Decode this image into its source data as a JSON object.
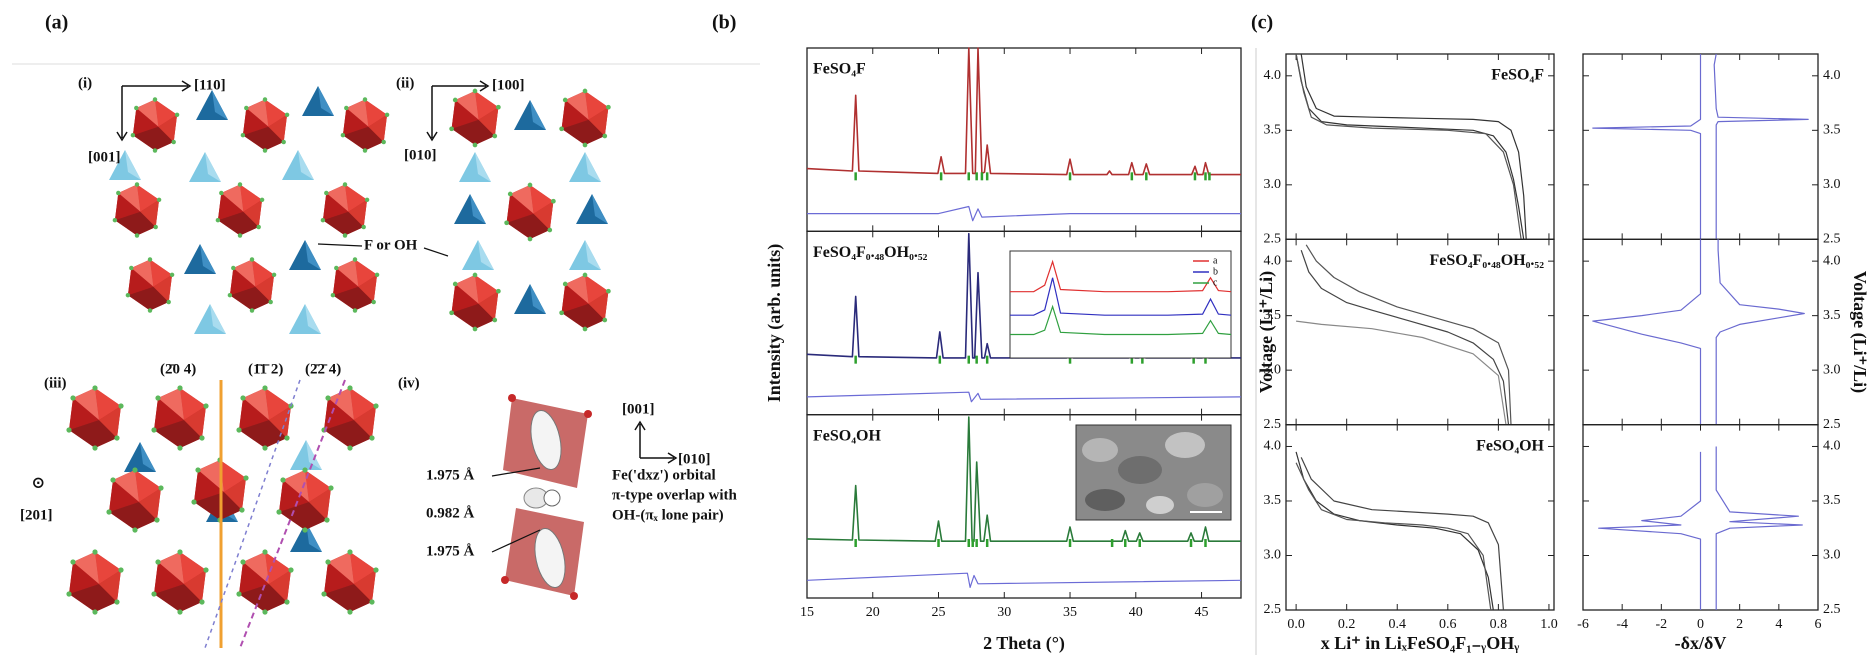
{
  "panel_labels": [
    "(a)",
    "(b)",
    "(c)"
  ],
  "panel_a": {
    "parts": [
      "(i)",
      "(ii)",
      "(iii)",
      "(iv)"
    ],
    "directions_i": [
      "[110]",
      "[001]"
    ],
    "directions_ii": [
      "[100]",
      "[010]"
    ],
    "site_label": "F or OH",
    "planes": [
      "(2̄0 4)",
      "(1̄1̄ 2)",
      "(2̄2̄ 4)"
    ],
    "view_symbol": "⊙",
    "view_direction": "[201]",
    "directions_iv": [
      "[001]",
      "[010]"
    ],
    "bond_lengths": [
      "1.975 Å",
      "0.982 Å",
      "1.975 Å"
    ],
    "orbital_note": [
      "Fe('dxz') orbital",
      "π-type overlap with",
      "OH-(πₓ lone pair)"
    ]
  },
  "chart_data": [
    {
      "type": "line",
      "title": "FeSO₄F",
      "xlim": [
        15,
        48
      ],
      "ylim": [
        -45,
        110
      ],
      "series": [
        {
          "color": "#b03030",
          "x": [
            15,
            18.45,
            18.7,
            18.95,
            24.95,
            25.2,
            25.45,
            27.05,
            27.3,
            27.6,
            27.8,
            28.0,
            28.3,
            28.5,
            28.7,
            28.95,
            34.75,
            35.0,
            35.25,
            37.8,
            38.0,
            38.2,
            39.45,
            39.7,
            39.95,
            40.55,
            40.8,
            41.05,
            44.25,
            44.5,
            44.7,
            45.1,
            45.3,
            45.55,
            48
          ],
          "values": [
            8,
            6,
            70,
            6,
            4,
            18,
            4,
            4,
            110,
            4,
            4,
            110,
            4,
            5,
            28,
            4,
            3,
            16,
            3,
            3,
            6,
            3,
            3,
            13,
            3,
            3,
            12,
            3,
            3,
            10,
            3,
            3,
            13,
            3,
            3
          ]
        },
        {
          "color": "#6b6bd6",
          "x": [
            15,
            25,
            27.3,
            27.6,
            28,
            28.3,
            35,
            48
          ],
          "values": [
            -30,
            -30,
            -24,
            -36,
            -26,
            -33,
            -30,
            -30
          ]
        }
      ],
      "bragg": {
        "color": "#2ea02e",
        "x": [
          18.7,
          25.2,
          27.3,
          27.9,
          28.3,
          28.7,
          35.0,
          39.7,
          40.8,
          44.5,
          45.3,
          45.6
        ]
      }
    },
    {
      "type": "line",
      "title": "FeSO₄F₀.₄₈OH₀.₅₂",
      "ylabel": "Intensity (arb. units)",
      "xlim": [
        15,
        48
      ],
      "ylim": [
        -45,
        110
      ],
      "series": [
        {
          "color": "#2a2a7a",
          "x": [
            15,
            18.45,
            18.7,
            18.95,
            24.85,
            25.1,
            25.35,
            27.05,
            27.3,
            27.6,
            27.75,
            28.0,
            28.3,
            28.5,
            28.7,
            28.95,
            34.75,
            35,
            35.25,
            39.45,
            39.7,
            39.95,
            40.25,
            40.5,
            40.75,
            44.15,
            44.4,
            44.65,
            45.05,
            45.3,
            45.55,
            48
          ],
          "values": [
            6,
            4,
            55,
            4,
            3,
            25,
            3,
            3,
            108,
            3,
            3,
            75,
            3,
            3,
            15,
            3,
            3,
            8,
            3,
            3,
            15,
            3,
            3,
            12,
            3,
            3,
            10,
            3,
            3,
            15,
            3,
            3
          ]
        },
        {
          "color": "#6b6bd6",
          "x": [
            15,
            27.3,
            27.5,
            28,
            28.2,
            48
          ],
          "values": [
            -30,
            -26,
            -34,
            -27,
            -32,
            -30
          ]
        }
      ],
      "bragg": {
        "color": "#2ea02e",
        "x": [
          18.7,
          25.1,
          27.3,
          27.9,
          28.7,
          35,
          39.7,
          40.5,
          44.4,
          45.3
        ]
      },
      "inset": {
        "type": "line",
        "xlim": [
          16,
          30
        ],
        "ylim": [
          0,
          100
        ],
        "series": [
          {
            "name": "a",
            "color": "#e03030",
            "x": [
              16,
              17.5,
              18.2,
              18.7,
              19.2,
              22,
              26,
              28.2,
              28.7,
              29.2,
              30
            ],
            "values": [
              62,
              62,
              68,
              90,
              64,
              62,
              62,
              63,
              75,
              63,
              62
            ]
          },
          {
            "name": "b",
            "color": "#3030c0",
            "x": [
              16,
              17.5,
              18.2,
              18.7,
              19.2,
              22,
              26,
              28.2,
              28.7,
              29.2,
              30
            ],
            "values": [
              40,
              40,
              45,
              75,
              42,
              40,
              40,
              41,
              55,
              41,
              40
            ]
          },
          {
            "name": "c",
            "color": "#30a040",
            "x": [
              16,
              17.5,
              18.2,
              18.7,
              19.2,
              22,
              26,
              28.2,
              28.7,
              29.2,
              30
            ],
            "values": [
              22,
              22,
              26,
              48,
              24,
              22,
              22,
              23,
              35,
              23,
              22
            ]
          }
        ]
      }
    },
    {
      "type": "line",
      "title": "FeSO₄OH",
      "xlabel": "2 Theta (°)",
      "xlim": [
        15,
        48
      ],
      "ylim": [
        -45,
        110
      ],
      "xticks": [
        15,
        20,
        25,
        30,
        35,
        40,
        45
      ],
      "series": [
        {
          "color": "#2a7a3a",
          "x": [
            15,
            18.45,
            18.7,
            18.95,
            24.75,
            25,
            25.25,
            27.05,
            27.3,
            27.55,
            27.7,
            27.9,
            28.2,
            28.45,
            28.7,
            28.95,
            34.75,
            35,
            35.25,
            38.95,
            39.2,
            39.45,
            40.05,
            40.3,
            40.55,
            43.95,
            44.2,
            44.45,
            45.05,
            45.3,
            45.55,
            48
          ],
          "values": [
            5,
            4,
            50,
            4,
            3,
            20,
            3,
            3,
            108,
            3,
            3,
            70,
            3,
            3,
            25,
            3,
            3,
            15,
            3,
            3,
            12,
            3,
            3,
            10,
            3,
            3,
            10,
            3,
            3,
            15,
            3,
            3
          ]
        },
        {
          "color": "#6b6bd6",
          "x": [
            15,
            27.2,
            27.4,
            27.7,
            28,
            48
          ],
          "values": [
            -30,
            -24,
            -36,
            -26,
            -33,
            -30
          ]
        }
      ],
      "bragg": {
        "color": "#2ea02e",
        "x": [
          18.7,
          25,
          27.3,
          27.6,
          27.9,
          28.7,
          35,
          38.2,
          39.2,
          40.3,
          44.2,
          45.3
        ]
      }
    },
    {
      "type": "line",
      "title": "FeSO₄F",
      "xlim": [
        -0.04,
        1.02
      ],
      "ylim": [
        2.5,
        4.2
      ],
      "yticks": [
        2.5,
        {
          "value": 3,
          "label": "3.0"
        },
        3.5,
        {
          "value": 4,
          "label": "4.0"
        }
      ],
      "series": [
        {
          "color": "#333333",
          "x": [
            0.0,
            0.02,
            0.05,
            0.1,
            0.2,
            0.4,
            0.6,
            0.7,
            0.78,
            0.83,
            0.86,
            0.88,
            0.9
          ],
          "values": [
            4.2,
            3.95,
            3.7,
            3.58,
            3.55,
            3.53,
            3.51,
            3.5,
            3.45,
            3.3,
            3.05,
            2.8,
            2.5
          ]
        },
        {
          "color": "#333333",
          "x": [
            0.91,
            0.9,
            0.88,
            0.85,
            0.8,
            0.7,
            0.5,
            0.3,
            0.15,
            0.08,
            0.04,
            0.02
          ],
          "values": [
            2.5,
            2.9,
            3.3,
            3.5,
            3.58,
            3.6,
            3.61,
            3.62,
            3.63,
            3.7,
            3.9,
            4.2
          ]
        },
        {
          "color": "#555555",
          "x": [
            0.0,
            0.03,
            0.06,
            0.12,
            0.3,
            0.6,
            0.75,
            0.82,
            0.86,
            0.89
          ],
          "values": [
            4.2,
            3.85,
            3.62,
            3.55,
            3.52,
            3.5,
            3.47,
            3.3,
            3.0,
            2.5
          ]
        }
      ]
    },
    {
      "type": "line",
      "xlim": [
        -6,
        6
      ],
      "ylim": [
        2.5,
        4.2
      ],
      "yticks": [
        2.5,
        {
          "value": 3,
          "label": "3.0"
        },
        3.5,
        {
          "value": 4,
          "label": "4.0"
        }
      ],
      "series": [
        {
          "color": "#6a6ad0",
          "x": [
            0.8,
            0.8,
            0.9,
            5.5,
            0.9,
            0.8,
            0.7,
            0.8
          ],
          "values": [
            2.5,
            3.55,
            3.58,
            3.6,
            3.62,
            3.7,
            4.1,
            4.2
          ]
        },
        {
          "color": "#6a6ad0",
          "x": [
            0,
            0,
            -0.5,
            -5.5,
            -0.5,
            0,
            0
          ],
          "values": [
            2.5,
            3.47,
            3.5,
            3.52,
            3.54,
            3.6,
            4.2
          ]
        }
      ]
    },
    {
      "type": "line",
      "title": "FeSO₄F₀.₄₈OH₀.₅₂",
      "ylabel": "Voltage (Li⁺/Li)",
      "xlim": [
        -0.04,
        1.02
      ],
      "ylim": [
        2.5,
        4.2
      ],
      "yticks": [
        2.5,
        {
          "value": 3,
          "label": "3.0"
        },
        3.5,
        {
          "value": 4,
          "label": "4.0"
        }
      ],
      "series": [
        {
          "color": "#444444",
          "x": [
            0.02,
            0.05,
            0.1,
            0.2,
            0.3,
            0.45,
            0.6,
            0.7,
            0.78,
            0.82,
            0.84
          ],
          "values": [
            4.1,
            3.9,
            3.75,
            3.62,
            3.55,
            3.45,
            3.35,
            3.25,
            3.1,
            2.9,
            2.5
          ]
        },
        {
          "color": "#555555",
          "x": [
            0.85,
            0.84,
            0.8,
            0.7,
            0.55,
            0.4,
            0.25,
            0.15,
            0.08,
            0.04
          ],
          "values": [
            2.5,
            3.0,
            3.25,
            3.38,
            3.48,
            3.58,
            3.72,
            3.85,
            4.0,
            4.15
          ]
        },
        {
          "color": "#888888",
          "x": [
            0,
            0.1,
            0.3,
            0.5,
            0.7,
            0.8,
            0.83
          ],
          "values": [
            3.45,
            3.42,
            3.38,
            3.3,
            3.15,
            2.95,
            2.5
          ]
        }
      ]
    },
    {
      "type": "line",
      "ylabel": "Voltage (Li⁺/Li)",
      "xlim": [
        -6,
        6
      ],
      "ylim": [
        2.5,
        4.2
      ],
      "yticks": [
        2.5,
        {
          "value": 3,
          "label": "3.0"
        },
        3.5,
        {
          "value": 4,
          "label": "4.0"
        }
      ],
      "series": [
        {
          "color": "#6a6ad0",
          "x": [
            0.8,
            0.8,
            1,
            2,
            4,
            5.3,
            4,
            2,
            1,
            0.9,
            0.9
          ],
          "values": [
            2.5,
            3.3,
            3.35,
            3.42,
            3.48,
            3.52,
            3.56,
            3.6,
            3.8,
            4.1,
            4.2
          ]
        },
        {
          "color": "#6a6ad0",
          "x": [
            0,
            0,
            -1,
            -3,
            -5.5,
            -3,
            -1,
            0,
            0
          ],
          "values": [
            2.5,
            3.2,
            3.25,
            3.33,
            3.45,
            3.5,
            3.55,
            3.7,
            4.2
          ]
        }
      ]
    },
    {
      "type": "line",
      "title": "FeSO₄OH",
      "xlabel": "x Li⁺ in LiₓFeSO₄F₁₋ᵧOHᵧ",
      "xlim": [
        -0.04,
        1.02
      ],
      "ylim": [
        2.5,
        4.2
      ],
      "xticks": [
        {
          "value": 0,
          "label": "0.0"
        },
        0.2,
        0.4,
        0.6,
        0.8,
        {
          "value": 1,
          "label": "1.0"
        }
      ],
      "yticks": [
        2.5,
        {
          "value": 3,
          "label": "3.0"
        },
        3.5,
        {
          "value": 4,
          "label": "4.0"
        }
      ],
      "series": [
        {
          "color": "#333333",
          "x": [
            0,
            0.03,
            0.08,
            0.15,
            0.25,
            0.4,
            0.55,
            0.65,
            0.72,
            0.76,
            0.78
          ],
          "values": [
            3.95,
            3.7,
            3.5,
            3.38,
            3.32,
            3.28,
            3.25,
            3.2,
            3.05,
            2.8,
            2.5
          ]
        },
        {
          "color": "#444444",
          "x": [
            0.82,
            0.8,
            0.76,
            0.7,
            0.6,
            0.45,
            0.3,
            0.15,
            0.06,
            0.02
          ],
          "values": [
            2.5,
            3.1,
            3.3,
            3.36,
            3.38,
            3.4,
            3.42,
            3.5,
            3.7,
            3.9
          ]
        },
        {
          "color": "#555555",
          "x": [
            0,
            0.05,
            0.1,
            0.2,
            0.35,
            0.5,
            0.6,
            0.68,
            0.74,
            0.77
          ],
          "values": [
            3.85,
            3.6,
            3.42,
            3.33,
            3.3,
            3.28,
            3.25,
            3.2,
            3.0,
            2.5
          ]
        }
      ]
    },
    {
      "type": "line",
      "xlabel": "-δx/δV",
      "xlim": [
        -6,
        6
      ],
      "ylim": [
        2.5,
        4.2
      ],
      "xticks": [
        -6,
        -4,
        -2,
        0,
        2,
        4,
        6
      ],
      "yticks": [
        2.5,
        {
          "value": 3,
          "label": "3.0"
        },
        3.5,
        {
          "value": 4,
          "label": "4.0"
        }
      ],
      "series": [
        {
          "color": "#6a6ad0",
          "x": [
            0.8,
            0.8,
            1.5,
            5.2,
            1.5,
            5,
            1.5,
            0.8,
            0.8
          ],
          "values": [
            2.5,
            3.2,
            3.25,
            3.28,
            3.31,
            3.36,
            3.4,
            3.6,
            4.0
          ]
        },
        {
          "color": "#6a6ad0",
          "x": [
            0,
            0,
            -1,
            -5.2,
            -1,
            -3,
            -1,
            0,
            0
          ],
          "values": [
            2.5,
            3.15,
            3.2,
            3.25,
            3.28,
            3.32,
            3.36,
            3.5,
            3.95
          ]
        }
      ]
    }
  ]
}
